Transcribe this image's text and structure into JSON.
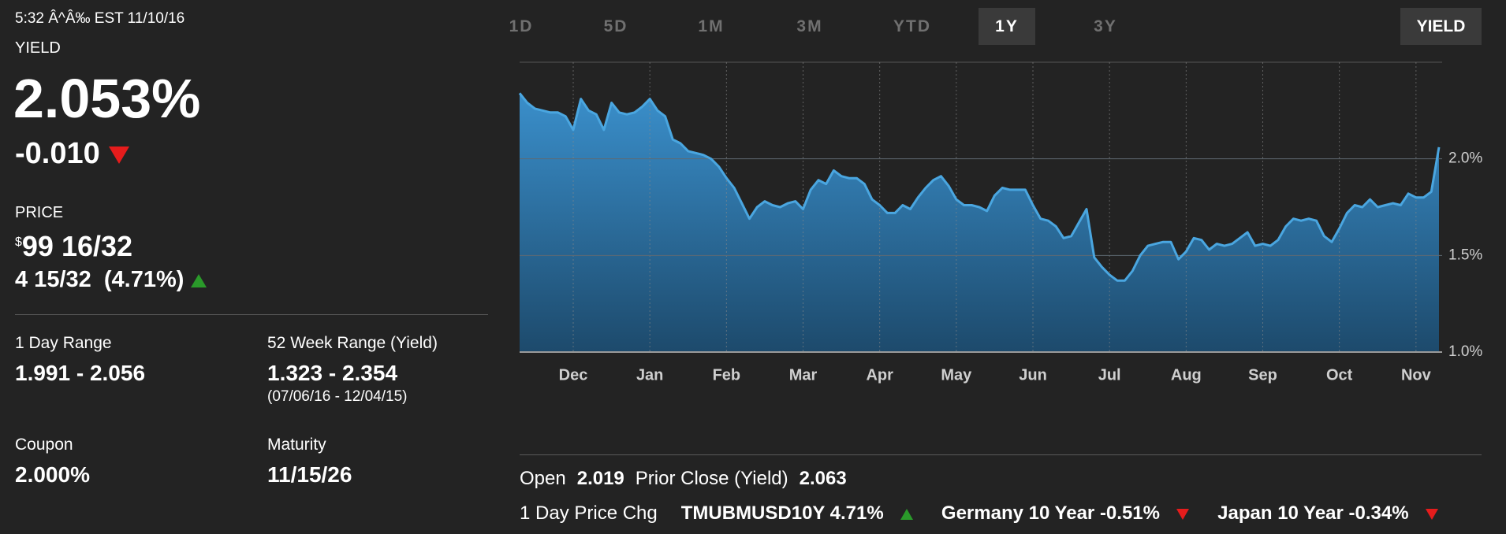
{
  "header": {
    "timestamp": "5:32 Â^Â‰ EST 11/10/16",
    "yield_label": "YIELD",
    "yield": "2.053%",
    "change": "-0.010",
    "change_direction": "down",
    "price_label": "PRICE",
    "price_currency": "$",
    "price": "99 16/32",
    "price_change": "4 15/32",
    "price_change_pct": "(4.71%)",
    "price_direction": "up"
  },
  "stats": [
    {
      "label": "1 Day Range",
      "value": "1.991 - 2.056"
    },
    {
      "label": "52 Week Range (Yield)",
      "value": "1.323 - 2.354",
      "note": "(07/06/16 - 12/04/15)"
    },
    {
      "label": "Coupon",
      "value": "2.000%"
    },
    {
      "label": "Maturity",
      "value": "11/15/26"
    }
  ],
  "tabs": [
    "1D",
    "5D",
    "1M",
    "3M",
    "YTD",
    "1Y",
    "3Y"
  ],
  "selected_tab": 5,
  "toggle": "YIELD",
  "summary": {
    "open_label": "Open",
    "open": "2.019",
    "prior_close_label": "Prior Close (Yield)",
    "prior_close": "2.063"
  },
  "movers": {
    "label": "1 Day Price Chg",
    "items": [
      {
        "name": "TMUBMUSD10Y 4.71%",
        "direction": "up"
      },
      {
        "name": "Germany 10 Year -0.51%",
        "direction": "down"
      },
      {
        "name": "Japan 10 Year -0.34%",
        "direction": "down"
      }
    ]
  },
  "chart_data": {
    "type": "area",
    "color": "#4aa6e0",
    "grid": true,
    "categories": [
      null,
      null,
      null,
      null,
      null,
      null,
      null,
      "Dec",
      null,
      null,
      null,
      null,
      null,
      null,
      null,
      null,
      null,
      "Jan",
      null,
      null,
      null,
      null,
      null,
      null,
      null,
      null,
      null,
      "Feb",
      null,
      null,
      null,
      null,
      null,
      null,
      null,
      null,
      null,
      "Mar",
      null,
      null,
      null,
      null,
      null,
      null,
      null,
      null,
      null,
      "Apr",
      null,
      null,
      null,
      null,
      null,
      null,
      null,
      null,
      null,
      "May",
      null,
      null,
      null,
      null,
      null,
      null,
      null,
      null,
      null,
      "Jun",
      null,
      null,
      null,
      null,
      null,
      null,
      null,
      null,
      null,
      "Jul",
      null,
      null,
      null,
      null,
      null,
      null,
      null,
      null,
      null,
      "Aug",
      null,
      null,
      null,
      null,
      null,
      null,
      null,
      null,
      null,
      "Sep",
      null,
      null,
      null,
      null,
      null,
      null,
      null,
      null,
      null,
      "Oct",
      null,
      null,
      null,
      null,
      null,
      null,
      null,
      null,
      null,
      "Nov",
      null,
      null,
      null
    ],
    "values": [
      2.34,
      2.29,
      2.26,
      2.25,
      2.24,
      2.24,
      2.22,
      2.15,
      2.31,
      2.25,
      2.23,
      2.15,
      2.29,
      2.24,
      2.23,
      2.24,
      2.27,
      2.31,
      2.25,
      2.22,
      2.1,
      2.08,
      2.04,
      2.03,
      2.02,
      2.0,
      1.96,
      1.9,
      1.85,
      1.77,
      1.69,
      1.75,
      1.78,
      1.76,
      1.75,
      1.77,
      1.78,
      1.74,
      1.84,
      1.89,
      1.87,
      1.94,
      1.91,
      1.9,
      1.9,
      1.87,
      1.79,
      1.76,
      1.72,
      1.72,
      1.76,
      1.74,
      1.8,
      1.85,
      1.89,
      1.91,
      1.86,
      1.79,
      1.76,
      1.76,
      1.75,
      1.73,
      1.81,
      1.85,
      1.84,
      1.84,
      1.84,
      1.76,
      1.69,
      1.68,
      1.65,
      1.59,
      1.6,
      1.67,
      1.74,
      1.49,
      1.44,
      1.4,
      1.37,
      1.37,
      1.42,
      1.5,
      1.55,
      1.56,
      1.57,
      1.57,
      1.48,
      1.52,
      1.59,
      1.58,
      1.53,
      1.56,
      1.55,
      1.56,
      1.59,
      1.62,
      1.55,
      1.56,
      1.55,
      1.58,
      1.65,
      1.69,
      1.68,
      1.69,
      1.68,
      1.6,
      1.57,
      1.64,
      1.72,
      1.76,
      1.75,
      1.79,
      1.75,
      1.76,
      1.77,
      1.76,
      1.82,
      1.8,
      1.8,
      1.83,
      2.06
    ],
    "ylim": [
      1.0,
      2.5
    ],
    "yticks": [
      {
        "value": 1.0,
        "label": "1.0%"
      },
      {
        "value": 1.5,
        "label": "1.5%"
      },
      {
        "value": 2.0,
        "label": "2.0%"
      }
    ]
  }
}
